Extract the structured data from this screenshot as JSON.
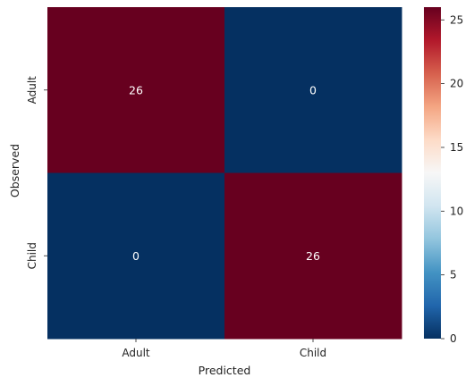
{
  "chart_data": {
    "type": "heatmap",
    "title": "",
    "xlabel": "Predicted",
    "ylabel": "Observed",
    "x_categories": [
      "Adult",
      "Child"
    ],
    "y_categories": [
      "Adult",
      "Child"
    ],
    "values": [
      [
        26,
        0
      ],
      [
        0,
        26
      ]
    ],
    "annotations": [
      "26",
      "0",
      "0",
      "26"
    ],
    "colormap": "RdBu_r",
    "value_range": [
      0,
      26
    ],
    "colorbar": {
      "ticks": [
        0,
        5,
        10,
        15,
        20,
        25
      ],
      "tick_labels": [
        "0",
        "5",
        "10",
        "15",
        "20",
        "25"
      ]
    },
    "colors": {
      "low": "#053061",
      "high": "#67001f",
      "annotation_text": "#ffffff"
    }
  }
}
